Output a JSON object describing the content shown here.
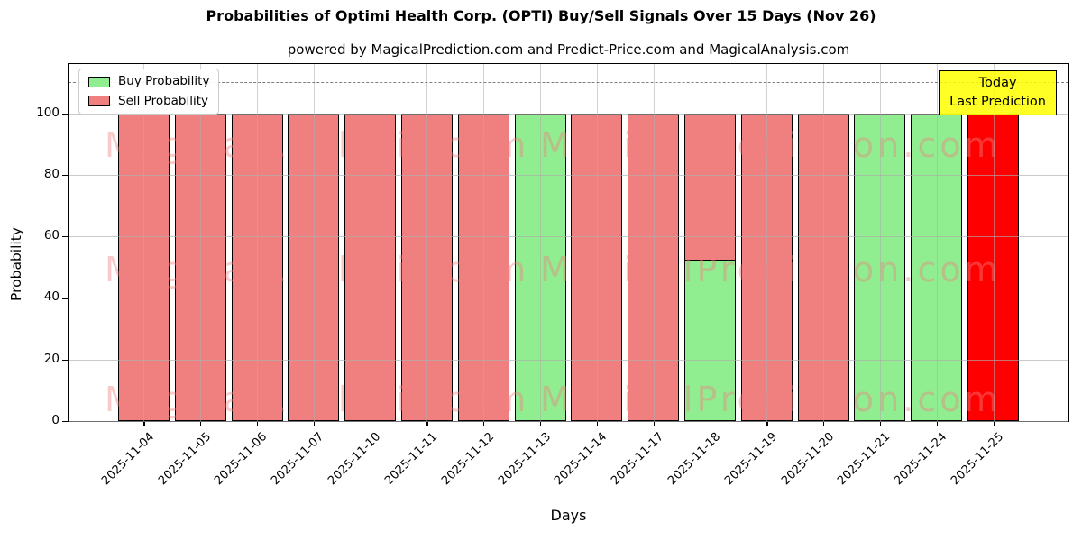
{
  "figure": {
    "title": "Probabilities of Optimi Health Corp. (OPTI) Buy/Sell Signals Over 15 Days (Nov 26)",
    "subtitle": "powered by MagicalPrediction.com and Predict-Price.com and MagicalAnalysis.com",
    "xlabel": "Days",
    "ylabel": "Probability"
  },
  "legend": {
    "items": [
      {
        "name": "buy-probability",
        "label": "Buy Probability",
        "color": "#90EE90"
      },
      {
        "name": "sell-probability",
        "label": "Sell Probability",
        "color": "#F08080"
      }
    ]
  },
  "annotation_box": {
    "line1": "Today",
    "line2": "Last Prediction",
    "bg_color": "#FFFF00"
  },
  "watermarks": {
    "texts": [
      "MagicalAnalysis.com",
      "MagicalPrediction.com"
    ],
    "color": "#F08080"
  },
  "colors": {
    "buy": "#90EE90",
    "sell": "#F08080",
    "today": "#FF0000",
    "grid": "#ADADAD",
    "dashed_line": "#7F7F7F",
    "bar_edge": "#000000"
  },
  "chart_data": {
    "type": "bar",
    "stacked": true,
    "title": "Probabilities of Optimi Health Corp. (OPTI) Buy/Sell Signals Over 15 Days (Nov 26)",
    "xlabel": "Days",
    "ylabel": "Probability",
    "ylim": [
      0,
      116
    ],
    "yticks": [
      0,
      20,
      40,
      60,
      80,
      100
    ],
    "grid": true,
    "dashed_line_y": 110,
    "legend_position": "upper left",
    "categories": [
      "2025-11-04",
      "2025-11-05",
      "2025-11-06",
      "2025-11-07",
      "2025-11-10",
      "2025-11-11",
      "2025-11-12",
      "2025-11-13",
      "2025-11-14",
      "2025-11-17",
      "2025-11-18",
      "2025-11-19",
      "2025-11-20",
      "2025-11-21",
      "2025-11-24",
      "2025-11-25"
    ],
    "series": [
      {
        "name": "Buy Probability",
        "color": "#90EE90",
        "values": [
          0,
          0,
          0,
          0,
          0,
          0,
          0,
          100,
          0,
          0,
          52,
          0,
          0,
          100,
          100,
          0
        ]
      },
      {
        "name": "Sell Probability",
        "color": "#F08080",
        "values": [
          100,
          100,
          100,
          100,
          100,
          100,
          100,
          0,
          100,
          100,
          48,
          100,
          100,
          0,
          0,
          0
        ]
      },
      {
        "name": "Today Last Prediction",
        "color": "#FF0000",
        "values": [
          0,
          0,
          0,
          0,
          0,
          0,
          0,
          0,
          0,
          0,
          0,
          0,
          0,
          0,
          0,
          100
        ]
      }
    ],
    "annotations": [
      "Today",
      "Last Prediction"
    ]
  }
}
